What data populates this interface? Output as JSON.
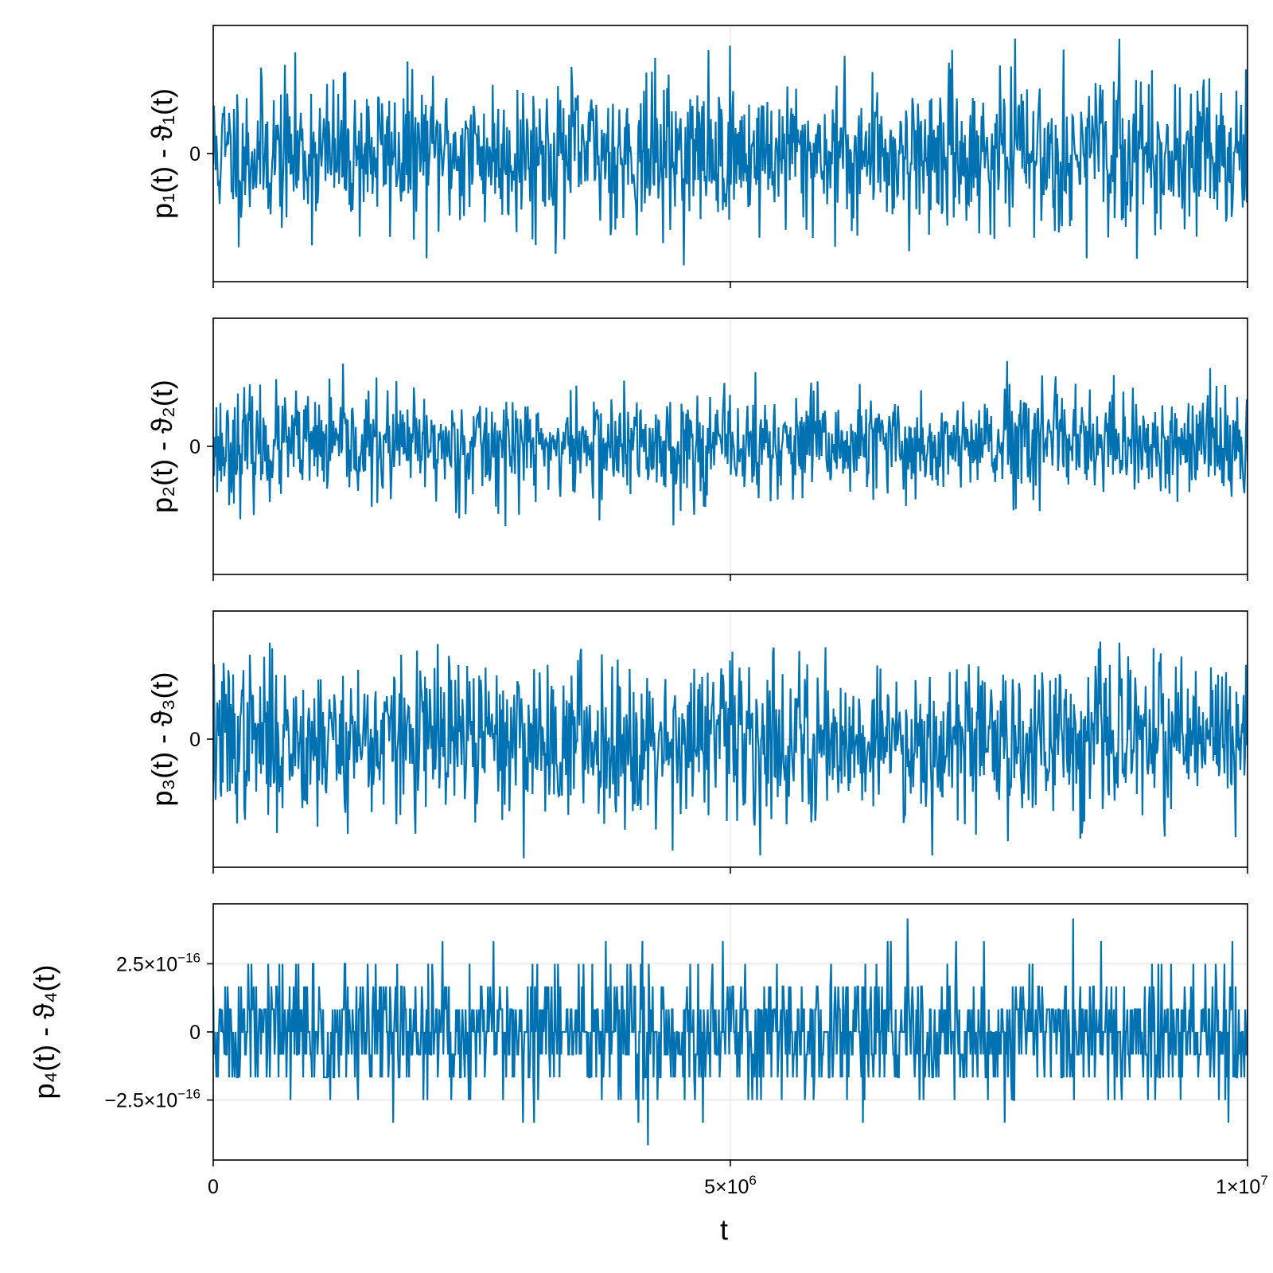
{
  "chart_data": [
    {
      "type": "line",
      "ylabel": "p₁(t) - ϑ₁(t)",
      "xlabel": "",
      "xlim": [
        0,
        10000000
      ],
      "x_ticks": [
        0,
        5000000,
        10000000
      ],
      "y_ticks": [
        {
          "value": 0,
          "label": "0"
        }
      ],
      "ylim": [
        -1.0,
        1.0
      ],
      "grid": true,
      "color": "#0072B2",
      "series": [
        {
          "values_note": "",
          "amplitude": 0.58,
          "peak": 0.95,
          "seed": 11
        }
      ]
    },
    {
      "type": "line",
      "ylabel": "p₂(t) - ϑ₂(t)",
      "xlabel": "",
      "xlim": [
        0,
        10000000
      ],
      "x_ticks": [
        0,
        5000000,
        10000000
      ],
      "y_ticks": [
        {
          "value": 0,
          "label": "0"
        }
      ],
      "ylim": [
        -1.0,
        1.0
      ],
      "grid": true,
      "color": "#0072B2",
      "series": [
        {
          "values_note": "",
          "amplitude": 0.42,
          "peak": 0.85,
          "seed": 23
        }
      ]
    },
    {
      "type": "line",
      "ylabel": "p₃(t) - ϑ₃(t)",
      "xlabel": "",
      "xlim": [
        0,
        10000000
      ],
      "x_ticks": [
        0,
        5000000,
        10000000
      ],
      "y_ticks": [
        {
          "value": 0,
          "label": "0"
        }
      ],
      "ylim": [
        -1.0,
        1.0
      ],
      "grid": true,
      "color": "#0072B2",
      "series": [
        {
          "values_note": "",
          "amplitude": 0.62,
          "peak": 0.93,
          "seed": 37
        }
      ]
    },
    {
      "type": "line",
      "ylabel": "p₄(t) - ϑ₄(t)",
      "xlabel": "t",
      "xlim": [
        0,
        10000000
      ],
      "x_ticks": [
        0,
        5000000,
        10000000
      ],
      "y_ticks": [
        {
          "value": 2.5e-16,
          "label": "2.5×10",
          "exp": "−16"
        },
        {
          "value": 0,
          "label": "0"
        },
        {
          "value": -2.5e-16,
          "label": "−2.5×10",
          "exp": "−16"
        }
      ],
      "ylim": [
        -4.7e-16,
        4.7e-16
      ],
      "quantized_levels": [
        -4.16e-16,
        -3.33e-16,
        -2.5e-16,
        -1.67e-16,
        -8.3e-17,
        0,
        8.3e-17,
        1.67e-16,
        2.5e-16,
        3.33e-16,
        4.16e-16
      ],
      "grid": true,
      "color": "#0072B2",
      "series": [
        {
          "seed": 51
        }
      ]
    }
  ],
  "x_tick_labels": [
    {
      "label": "0",
      "exp": ""
    },
    {
      "label": "5×10",
      "exp": "6"
    },
    {
      "label": "1×10",
      "exp": "7"
    }
  ],
  "shared_xlabel": "t"
}
